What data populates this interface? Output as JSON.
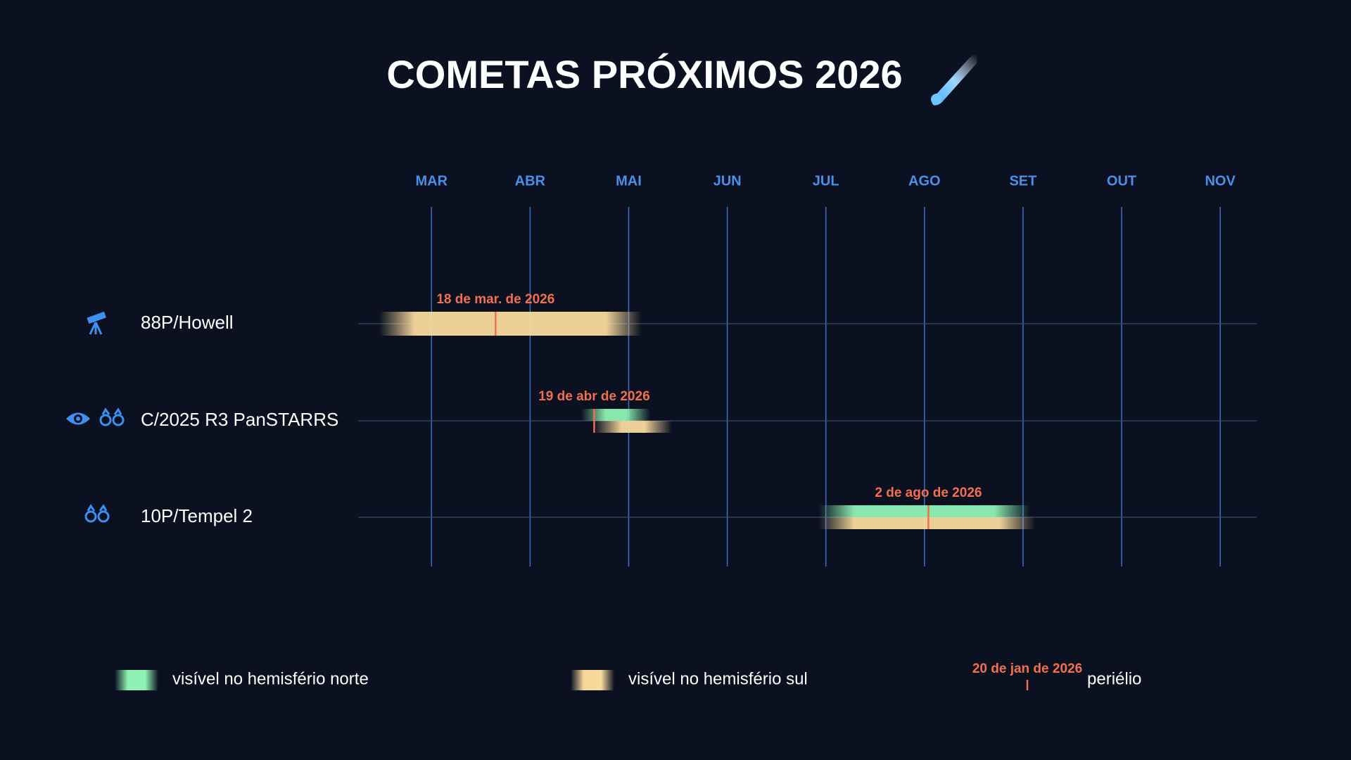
{
  "chart_data": {
    "type": "timeline",
    "title": "COMETAS PRÓXIMOS 2026",
    "xlim": [
      2.256,
      11.37
    ],
    "xticks": [
      {
        "value": 3,
        "label": "MAR"
      },
      {
        "value": 4,
        "label": "ABR"
      },
      {
        "value": 5,
        "label": "MAI"
      },
      {
        "value": 6,
        "label": "JUN"
      },
      {
        "value": 7,
        "label": "JUL"
      },
      {
        "value": 8,
        "label": "AGO"
      },
      {
        "value": 9,
        "label": "SET"
      },
      {
        "value": 10,
        "label": "OUT"
      },
      {
        "value": 11,
        "label": "NOV"
      }
    ],
    "grid": true,
    "north_color": "#8ff2b4",
    "south_color": "#f8d99c",
    "perihelion_color": "#f2704c",
    "series": [
      {
        "name": "88P/Howell",
        "perihelion": 3.65,
        "perihelion_label": "18 de mar. de 2026",
        "south": [
          2.47,
          5.13
        ]
      },
      {
        "name": "C/2025 R3 PanSTARRS",
        "perihelion": 4.65,
        "perihelion_label": "19 de abr de 2026",
        "north": [
          4.52,
          5.22
        ],
        "south": [
          4.65,
          5.44
        ]
      },
      {
        "name": "10P/Tempel 2",
        "perihelion": 8.04,
        "perihelion_label": "2 de ago de 2026",
        "north": [
          6.93,
          9.07
        ],
        "south": [
          6.93,
          9.12
        ]
      }
    ],
    "legend": {
      "north": "visível no hemisfério norte",
      "south": "visível no hemisfério sul",
      "perihelion_example": "20 de jan de 2026",
      "perihelion": "periélio"
    }
  }
}
